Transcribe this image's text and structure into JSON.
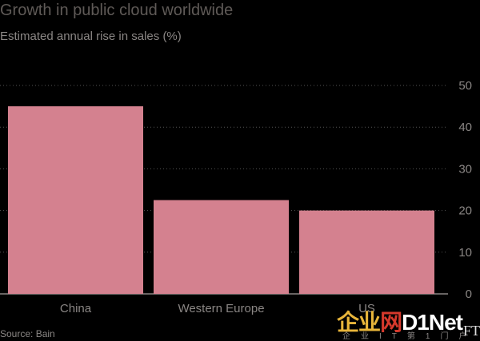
{
  "header": {
    "title": "Growth in public cloud worldwide",
    "subtitle": "Estimated annual rise in sales (%)"
  },
  "chart_data": {
    "type": "bar",
    "categories": [
      "China",
      "Western Europe",
      "US"
    ],
    "values": [
      45,
      22.5,
      20
    ],
    "ylim": [
      0,
      50
    ],
    "yticks": [
      0,
      10,
      20,
      30,
      40,
      50
    ],
    "grid": true,
    "bar_color": "#d4818f"
  },
  "footer": {
    "source": "Source: Bain"
  },
  "watermark": {
    "part1": "企业",
    "part2": "网",
    "part3": "D1Net",
    "sub": "企业IT第1门户",
    "logo": "FT"
  }
}
